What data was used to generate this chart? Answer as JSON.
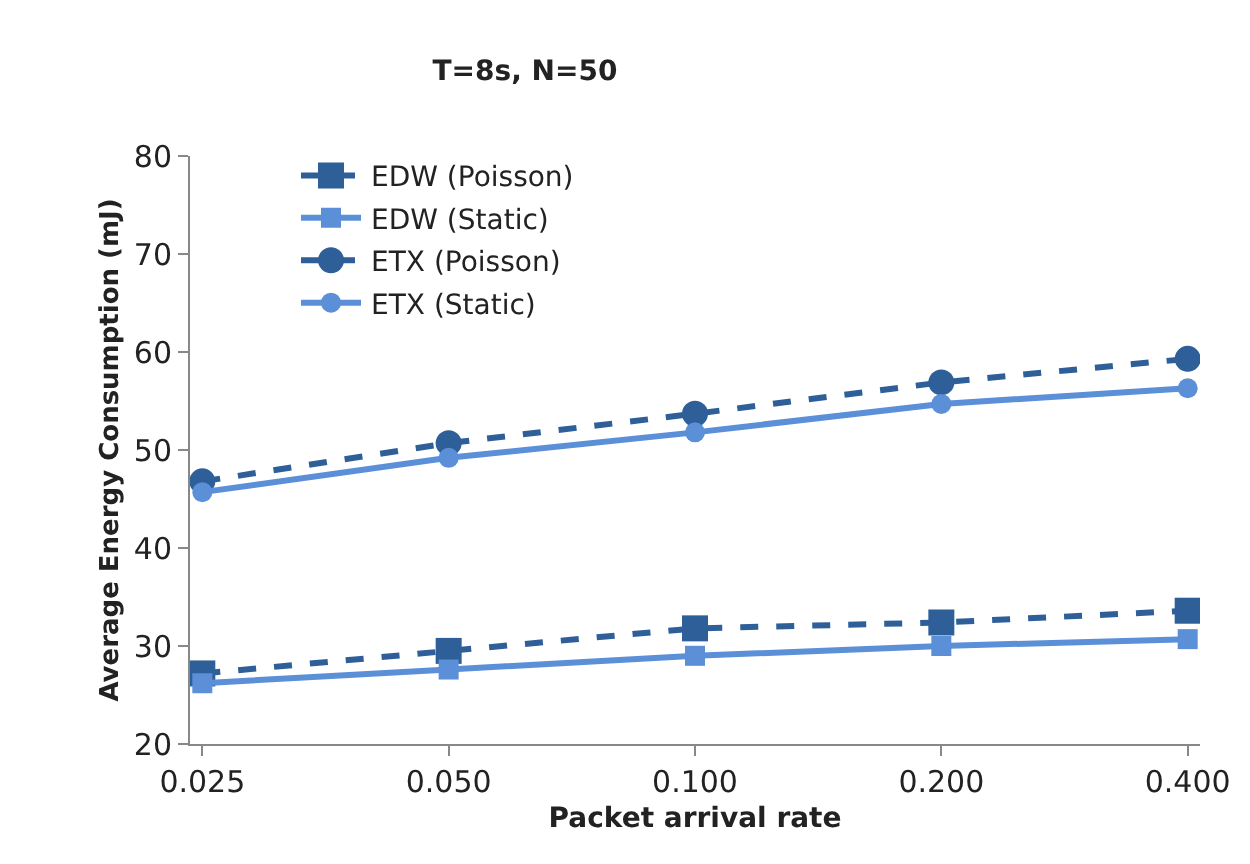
{
  "chart_data": {
    "type": "line",
    "title": "T=8s, N=50",
    "xlabel": "Packet arrival rate",
    "ylabel": "Average Energy Consumption (mJ)",
    "categories": [
      "0.025",
      "0.050",
      "0.100",
      "0.200",
      "0.400"
    ],
    "series": [
      {
        "name": "EDW (Poisson)",
        "color": "#2f5f98",
        "marker": "square",
        "line_style": "dashed",
        "values": [
          27.2,
          29.5,
          31.8,
          32.4,
          33.6
        ]
      },
      {
        "name": "EDW (Static)",
        "color": "#5b8fd8",
        "marker": "square",
        "line_style": "solid",
        "values": [
          26.2,
          27.6,
          29.0,
          30.0,
          30.7
        ]
      },
      {
        "name": "ETX (Poisson)",
        "color": "#2f5f98",
        "marker": "circle",
        "line_style": "dashed",
        "values": [
          46.8,
          50.7,
          53.7,
          56.9,
          59.3
        ]
      },
      {
        "name": "ETX (Static)",
        "color": "#5b8fd8",
        "marker": "circle",
        "line_style": "solid",
        "values": [
          45.7,
          49.2,
          51.8,
          54.7,
          56.3
        ]
      }
    ],
    "ylim": [
      20,
      80
    ],
    "yticks": [
      20,
      30,
      40,
      50,
      60,
      70,
      80
    ],
    "grid": false,
    "legend": "top left"
  }
}
